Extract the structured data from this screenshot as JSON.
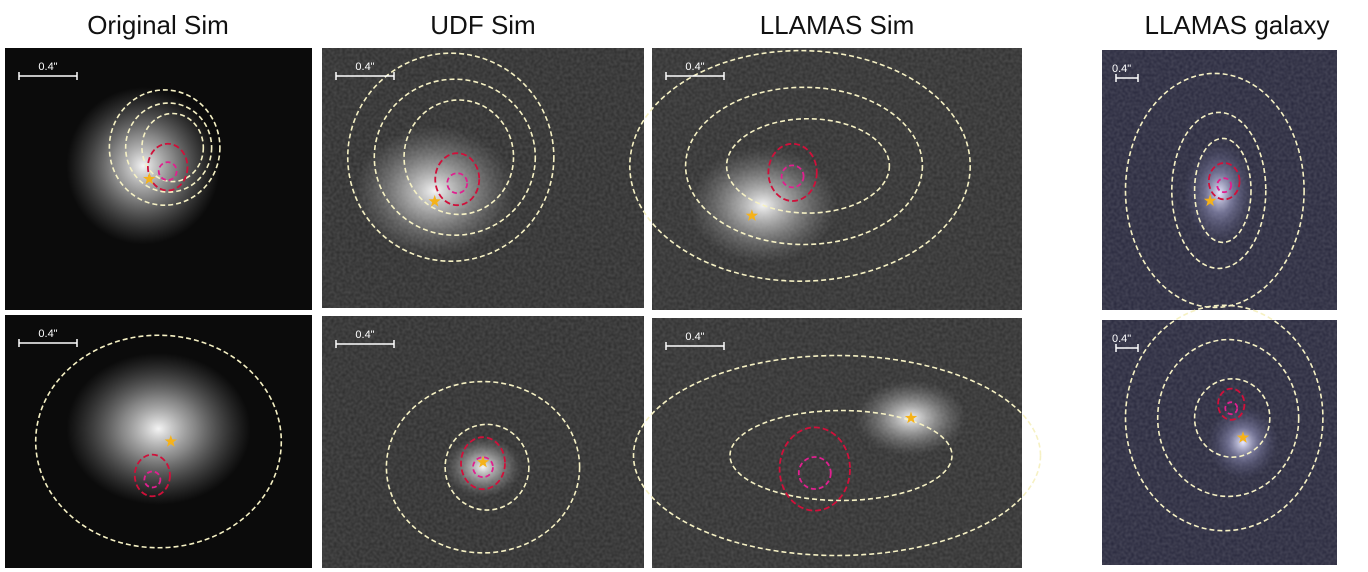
{
  "columns": [
    {
      "title": "Original Sim",
      "panels": [
        {
          "scale_label": "0.4\""
        },
        {
          "scale_label": "0.4\""
        }
      ]
    },
    {
      "title": "UDF Sim",
      "panels": [
        {
          "scale_label": "0.4\""
        },
        {
          "scale_label": "0.4\""
        }
      ]
    },
    {
      "title": "LLAMAS Sim",
      "panels": [
        {
          "scale_label": "0.4\""
        },
        {
          "scale_label": "0.4\""
        }
      ]
    },
    {
      "title": "LLAMAS galaxy",
      "panels": [
        {
          "scale_label": "0.4\""
        },
        {
          "scale_label": "0.4\""
        }
      ]
    }
  ]
}
